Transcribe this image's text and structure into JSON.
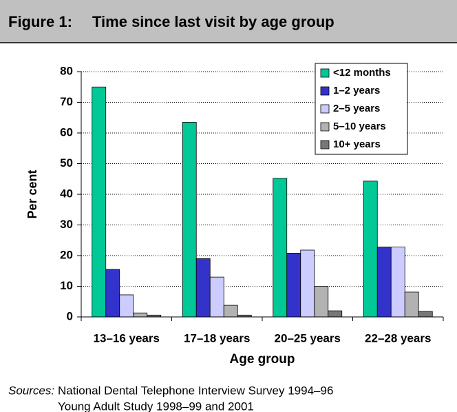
{
  "chart_data": {
    "type": "bar",
    "figure_label": "Figure 1:",
    "title": "Time since last visit by age group",
    "y_label": "Per cent",
    "x_label": "Age group",
    "categories": [
      "13–16 years",
      "17–18 years",
      "20–25 years",
      "22–28 years"
    ],
    "series": [
      {
        "name": "<12 months",
        "color": "#00c896",
        "values": [
          75,
          63.5,
          45.2,
          44.3
        ]
      },
      {
        "name": "1–2 years",
        "color": "#3333cc",
        "values": [
          15.5,
          19,
          20.8,
          22.8
        ]
      },
      {
        "name": "2–5 years",
        "color": "#ccccff",
        "values": [
          7.2,
          13,
          21.8,
          22.8
        ]
      },
      {
        "name": "5–10 years",
        "color": "#b2b2b2",
        "values": [
          1.3,
          3.8,
          10,
          8.1
        ]
      },
      {
        "name": "10+ years",
        "color": "#777777",
        "values": [
          0.6,
          0.6,
          2,
          1.8
        ]
      }
    ],
    "ylim": [
      0,
      80
    ],
    "yticks": [
      0,
      10,
      20,
      30,
      40,
      50,
      60,
      70,
      80
    ],
    "grid": true,
    "legend": "top-right",
    "sources_label": "Sources:",
    "sources": [
      "National Dental Telephone Interview Survey 1994–96",
      "Young Adult Study 1998–99 and 2001"
    ]
  }
}
